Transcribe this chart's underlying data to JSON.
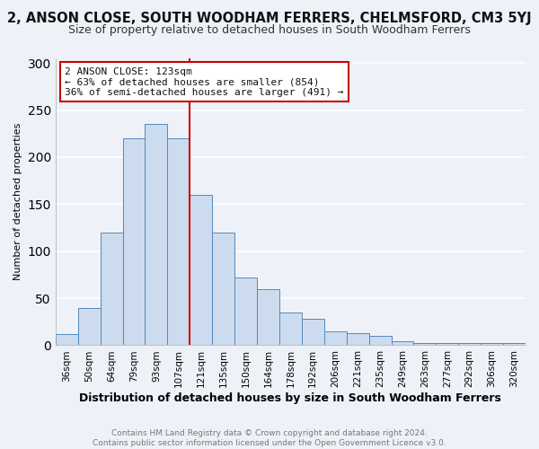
{
  "title": "2, ANSON CLOSE, SOUTH WOODHAM FERRERS, CHELMSFORD, CM3 5YJ",
  "subtitle": "Size of property relative to detached houses in South Woodham Ferrers",
  "xlabel": "Distribution of detached houses by size in South Woodham Ferrers",
  "ylabel": "Number of detached properties",
  "categories": [
    "36sqm",
    "50sqm",
    "64sqm",
    "79sqm",
    "93sqm",
    "107sqm",
    "121sqm",
    "135sqm",
    "150sqm",
    "164sqm",
    "178sqm",
    "192sqm",
    "206sqm",
    "221sqm",
    "235sqm",
    "249sqm",
    "263sqm",
    "277sqm",
    "292sqm",
    "306sqm",
    "320sqm"
  ],
  "values": [
    12,
    40,
    120,
    220,
    235,
    220,
    160,
    120,
    72,
    60,
    35,
    28,
    15,
    13,
    10,
    4,
    2,
    2,
    2,
    2,
    2
  ],
  "bar_color": "#ccdcee",
  "bar_edge_color": "#5588bb",
  "vline_index": 6,
  "vline_color": "#cc0000",
  "annotation_text": "2 ANSON CLOSE: 123sqm\n← 63% of detached houses are smaller (854)\n36% of semi-detached houses are larger (491) →",
  "annotation_box_color": "#ffffff",
  "annotation_box_edge": "#cc0000",
  "footer": "Contains HM Land Registry data © Crown copyright and database right 2024.\nContains public sector information licensed under the Open Government Licence v3.0.",
  "ylim": [
    0,
    305
  ],
  "yticks": [
    0,
    50,
    100,
    150,
    200,
    250,
    300
  ],
  "bg_color": "#eef2f8",
  "grid_color": "#ffffff",
  "title_fontsize": 10.5,
  "subtitle_fontsize": 9,
  "xlabel_fontsize": 9,
  "ylabel_fontsize": 8,
  "bar_width": 1.0
}
